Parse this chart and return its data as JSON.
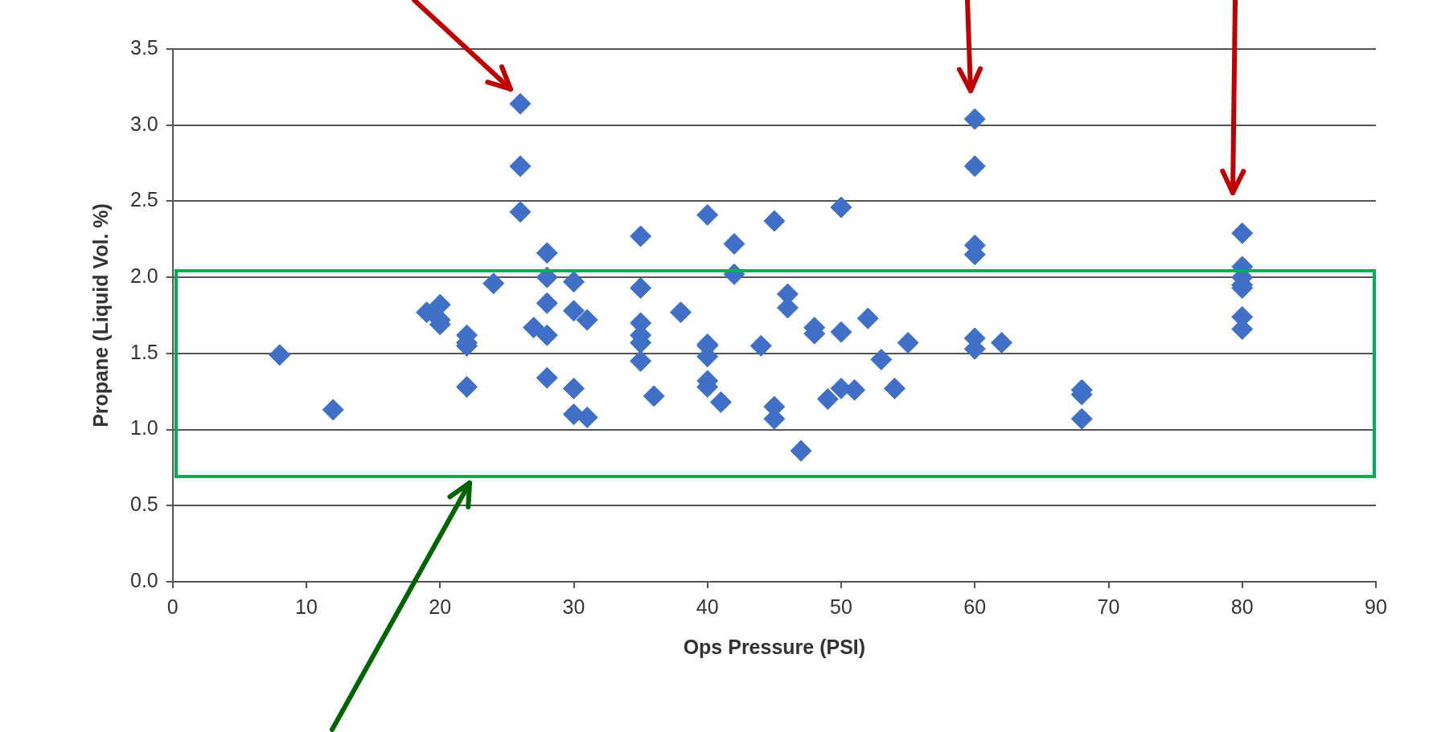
{
  "chart_data": {
    "type": "scatter",
    "xlabel": "Ops Pressure (PSI)",
    "ylabel": "Propane (Liquid Vol. %)",
    "xlim": [
      0,
      90
    ],
    "xticks": [
      0,
      10,
      20,
      30,
      40,
      50,
      60,
      70,
      80,
      90
    ],
    "ylim": [
      0,
      3.5
    ],
    "yticks": [
      {
        "value": 0,
        "label": "0.0"
      },
      {
        "value": 0.5,
        "label": "0.5"
      },
      {
        "value": 1,
        "label": "1.0"
      },
      {
        "value": 1.5,
        "label": "1.5"
      },
      {
        "value": 2,
        "label": "2.0"
      },
      {
        "value": 2.5,
        "label": "2.5"
      },
      {
        "value": 3,
        "label": "3.0"
      },
      {
        "value": 3.5,
        "label": "3.5"
      }
    ],
    "grid": "y",
    "legend": false,
    "marker": "diamond",
    "series": [
      {
        "color": "#3f6fc6",
        "x": [
          8,
          12,
          19,
          20,
          20,
          20,
          22,
          22,
          22,
          22,
          24,
          26,
          26,
          26,
          27,
          28,
          28,
          28,
          28,
          28,
          30,
          30,
          30,
          30,
          31,
          31,
          35,
          35,
          35,
          35,
          35,
          35,
          36,
          38,
          40,
          40,
          40,
          40,
          40,
          40,
          41,
          42,
          42,
          44,
          45,
          45,
          45,
          46,
          46,
          47,
          48,
          48,
          49,
          50,
          50,
          50,
          51,
          52,
          53,
          54,
          55,
          60,
          60,
          60,
          60,
          60,
          60,
          62,
          68,
          68,
          68,
          80,
          80,
          80,
          80,
          80,
          80,
          80
        ],
        "values": [
          1.49,
          1.13,
          1.77,
          1.82,
          1.72,
          1.69,
          1.62,
          1.57,
          1.55,
          1.28,
          1.96,
          3.14,
          2.73,
          2.43,
          1.67,
          2.16,
          2.0,
          1.83,
          1.62,
          1.34,
          1.97,
          1.78,
          1.27,
          1.1,
          1.72,
          1.08,
          2.27,
          1.93,
          1.7,
          1.62,
          1.57,
          1.45,
          1.22,
          1.77,
          2.41,
          1.56,
          1.55,
          1.48,
          1.32,
          1.28,
          1.18,
          2.22,
          2.02,
          1.55,
          2.37,
          1.15,
          1.07,
          1.89,
          1.8,
          0.86,
          1.67,
          1.63,
          1.2,
          2.46,
          1.64,
          1.27,
          1.26,
          1.73,
          1.46,
          1.27,
          1.57,
          3.04,
          2.73,
          2.21,
          2.15,
          1.6,
          1.53,
          1.57,
          1.26,
          1.23,
          1.07,
          2.29,
          2.07,
          2.0,
          1.95,
          1.93,
          1.74,
          1.66
        ]
      }
    ]
  }
}
